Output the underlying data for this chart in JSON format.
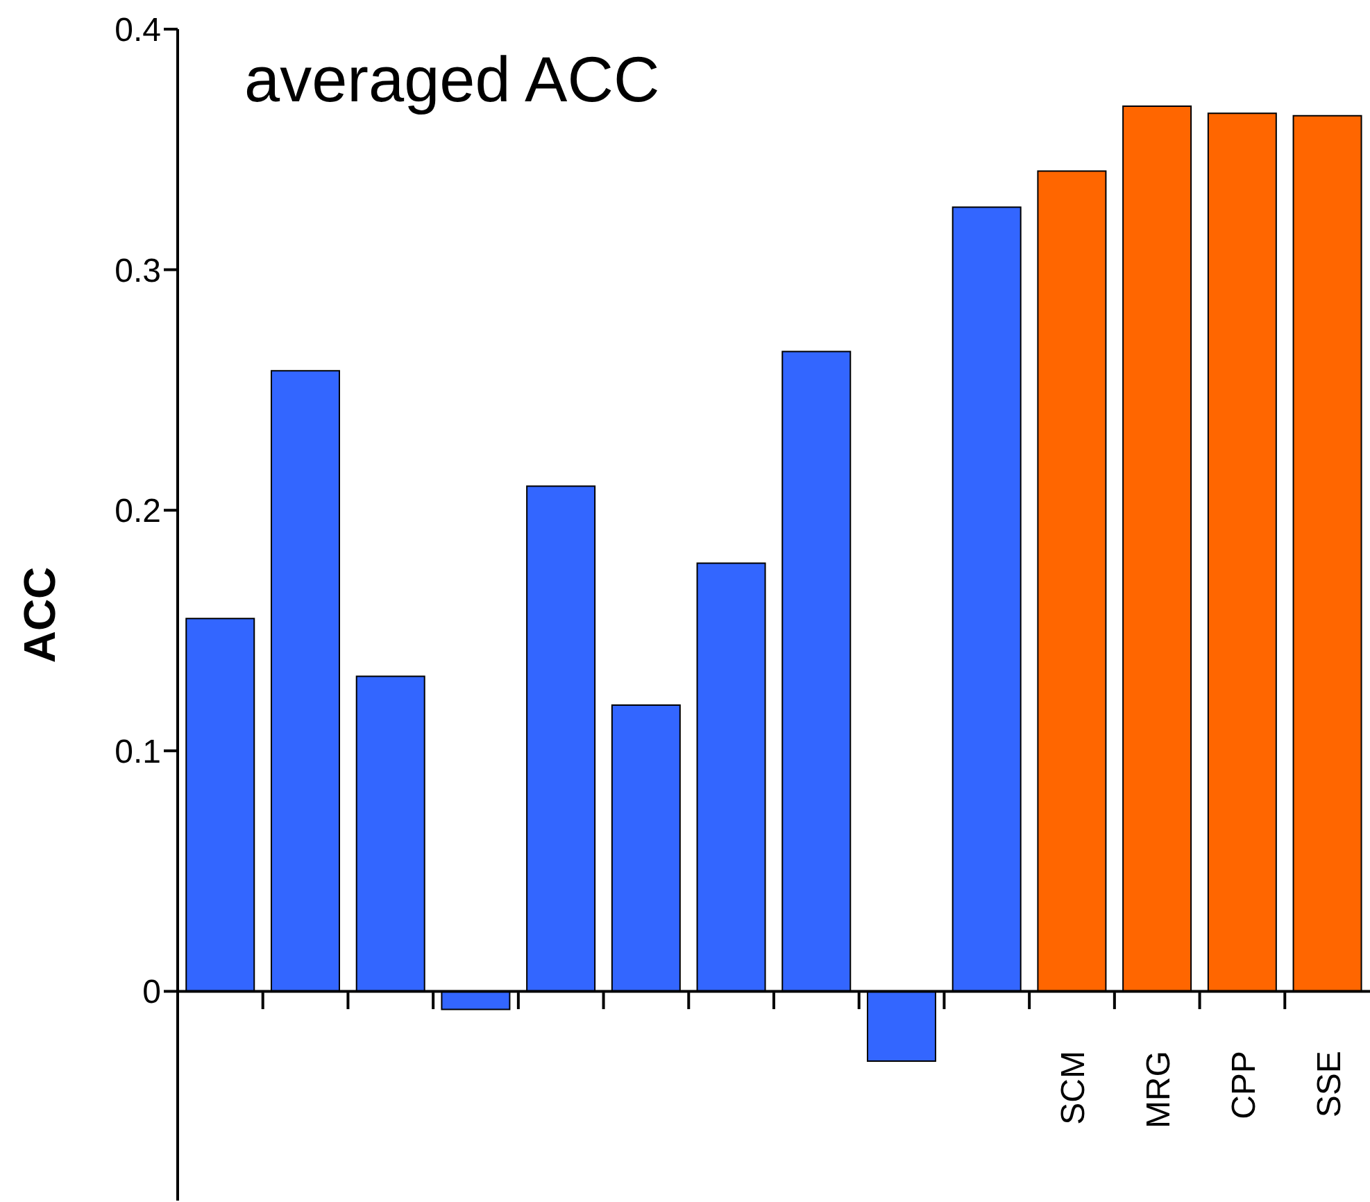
{
  "chart_data": {
    "type": "bar",
    "title": "averaged ACC",
    "ylabel": "ACC",
    "categories": [
      null,
      null,
      null,
      null,
      null,
      null,
      null,
      null,
      null,
      null,
      "SCM",
      "MRG",
      "CPP",
      "SSE"
    ],
    "values": [
      0.155,
      0.258,
      0.131,
      -0.0075,
      0.21,
      0.119,
      0.178,
      0.266,
      -0.029,
      0.326,
      0.341,
      0.368,
      0.365,
      0.364
    ],
    "colors": [
      "#3366ff",
      "#3366ff",
      "#3366ff",
      "#3366ff",
      "#3366ff",
      "#3366ff",
      "#3366ff",
      "#3366ff",
      "#3366ff",
      "#3366ff",
      "#ff6600",
      "#ff6600",
      "#ff6600",
      "#ff6600"
    ],
    "ylim": [
      -0.087,
      0.4
    ],
    "yticks": [
      0,
      0.1,
      0.2,
      0.3,
      0.4
    ],
    "grid": false,
    "legend": false
  }
}
